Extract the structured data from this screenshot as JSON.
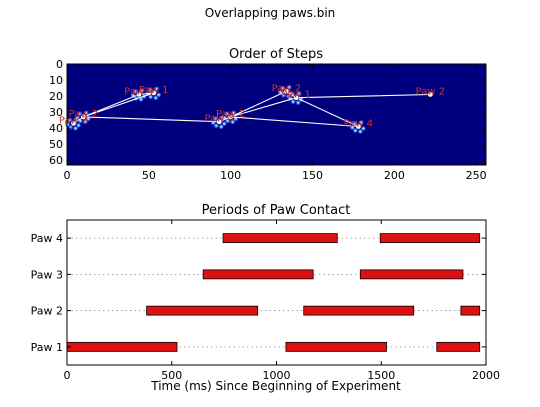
{
  "suptitle": "Overlapping paws.bin",
  "chart_data": [
    {
      "type": "scatter",
      "title": "Order of Steps",
      "xlabel": "",
      "ylabel": "",
      "xlim": [
        0,
        256
      ],
      "ylim": [
        63,
        0
      ],
      "xticks": [
        0,
        50,
        100,
        150,
        200,
        250
      ],
      "yticks": [
        0,
        10,
        20,
        30,
        40,
        50,
        60
      ],
      "background": "#00007f",
      "path_color": "#ffffff",
      "label_color": "#cc3333",
      "path": [
        {
          "x": 4,
          "y": 37
        },
        {
          "x": 10,
          "y": 33
        },
        {
          "x": 44,
          "y": 19
        },
        {
          "x": 53,
          "y": 18
        },
        {
          "x": 10,
          "y": 33
        },
        {
          "x": 93,
          "y": 36
        },
        {
          "x": 100,
          "y": 33
        },
        {
          "x": 134,
          "y": 17
        },
        {
          "x": 140,
          "y": 21
        },
        {
          "x": 178,
          "y": 39
        },
        {
          "x": 100,
          "y": 33
        },
        {
          "x": 140,
          "y": 21
        },
        {
          "x": 222,
          "y": 19
        }
      ],
      "steps": [
        {
          "label": "Paw 3",
          "x": 4,
          "y": 37
        },
        {
          "label": "Paw 2",
          "x": 10,
          "y": 33
        },
        {
          "label": "Paw 4",
          "x": 44,
          "y": 19
        },
        {
          "label": "Paw 1",
          "x": 53,
          "y": 18
        },
        {
          "label": "Paw 3",
          "x": 93,
          "y": 36
        },
        {
          "label": "Paw 2",
          "x": 100,
          "y": 33
        },
        {
          "label": "Paw 2",
          "x": 134,
          "y": 17
        },
        {
          "label": "Paw 1",
          "x": 140,
          "y": 21
        },
        {
          "label": "Paw 4",
          "x": 178,
          "y": 39
        },
        {
          "label": "Paw 2",
          "x": 222,
          "y": 19
        }
      ]
    },
    {
      "type": "bar",
      "orientation": "horizontal-broken",
      "title": "Periods of Paw Contact",
      "xlabel": "Time (ms) Since Beginning of Experiment",
      "ylabel": "",
      "xlim": [
        0,
        2000
      ],
      "xticks": [
        0,
        500,
        1000,
        1500,
        2000
      ],
      "categories": [
        "Paw 1",
        "Paw 2",
        "Paw 3",
        "Paw 4"
      ],
      "bar_color": "#dd1111",
      "grid": "dotted horizontal",
      "series": [
        {
          "category": "Paw 1",
          "intervals": [
            [
              0,
              525
            ],
            [
              1045,
              1525
            ],
            [
              1765,
              1970
            ]
          ]
        },
        {
          "category": "Paw 2",
          "intervals": [
            [
              380,
              910
            ],
            [
              1130,
              1655
            ],
            [
              1880,
              1970
            ]
          ]
        },
        {
          "category": "Paw 3",
          "intervals": [
            [
              650,
              1175
            ],
            [
              1400,
              1890
            ]
          ]
        },
        {
          "category": "Paw 4",
          "intervals": [
            [
              745,
              1290
            ],
            [
              1495,
              1970
            ]
          ]
        }
      ]
    }
  ]
}
